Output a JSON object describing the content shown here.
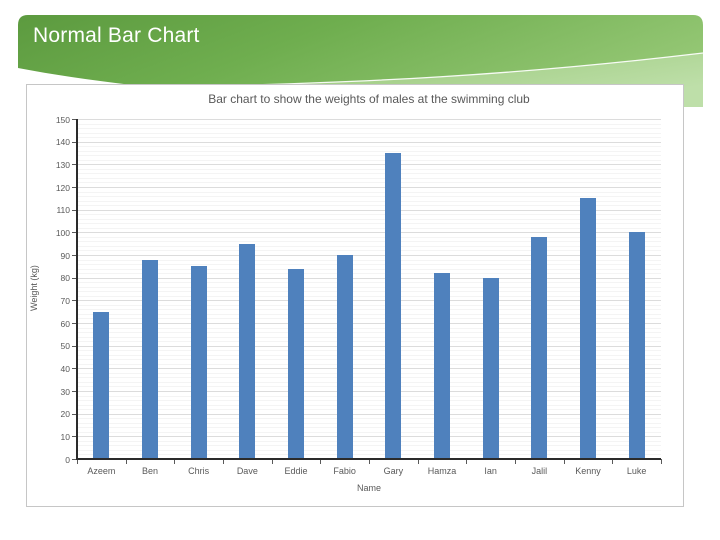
{
  "slide": {
    "title": "Normal Bar Chart"
  },
  "colors": {
    "banner_green_dark": "#5c9a3f",
    "banner_green_mid": "#6fae4f",
    "banner_green_light": "#93c673",
    "banner_green_pale": "#bedfa9",
    "bar_fill": "#4f81bd",
    "grid_major": "#dcdcdc",
    "grid_minor": "#f4f4f4",
    "axis_text": "#595959",
    "axis_line": "#2b2b2b"
  },
  "chart_data": {
    "type": "bar",
    "title": "Bar chart to show the weights of males at the swimming club",
    "xlabel": "Name",
    "ylabel": "Weight (kg)",
    "categories": [
      "Azeem",
      "Ben",
      "Chris",
      "Dave",
      "Eddie",
      "Fabio",
      "Gary",
      "Hamza",
      "Ian",
      "Jalil",
      "Kenny",
      "Luke"
    ],
    "values": [
      65,
      88,
      85,
      95,
      84,
      90,
      135,
      82,
      80,
      98,
      115,
      100
    ],
    "ylim": [
      0,
      150
    ],
    "ytick_step": 10,
    "ygrid_minor_step": 2,
    "grid": "on",
    "legend": "none"
  }
}
